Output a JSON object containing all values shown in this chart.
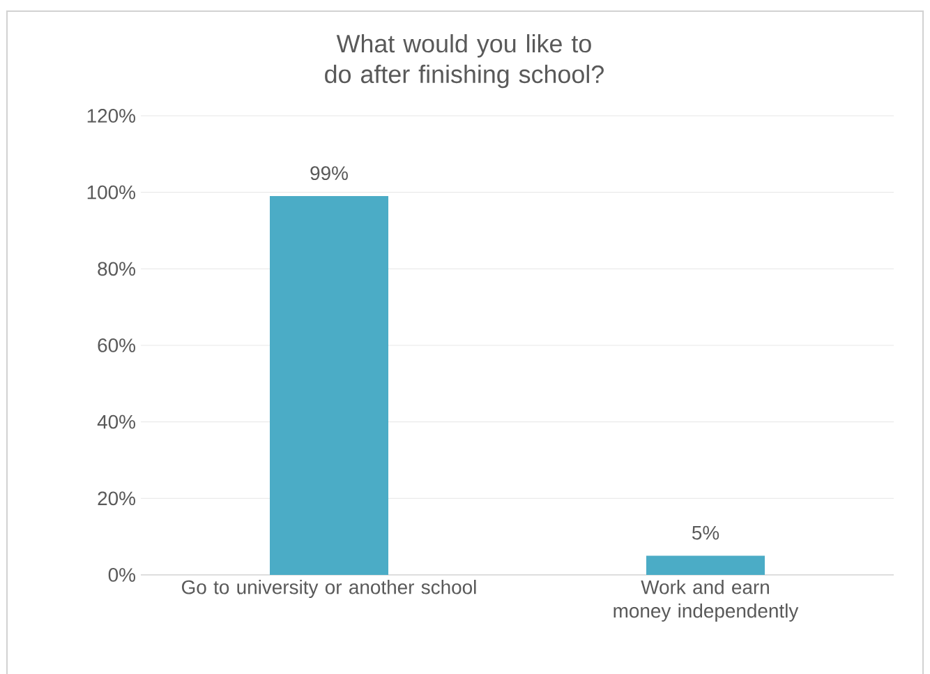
{
  "chart_data": {
    "type": "bar",
    "title": "What would you like to do after finishing school?",
    "categories": [
      "Go to university or another school",
      "Work and earn money independently"
    ],
    "values": [
      99,
      5
    ],
    "value_labels": [
      "99%",
      "5%"
    ],
    "color": "#4bacc6",
    "ylim": [
      0,
      120
    ],
    "yticks": [
      {
        "value": 0,
        "label": "0%"
      },
      {
        "value": 20,
        "label": "20%"
      },
      {
        "value": 40,
        "label": "40%"
      },
      {
        "value": 60,
        "label": "60%"
      },
      {
        "value": 80,
        "label": "80%"
      },
      {
        "value": 100,
        "label": "100%"
      },
      {
        "value": 120,
        "label": "120%"
      }
    ],
    "grid": "y"
  }
}
